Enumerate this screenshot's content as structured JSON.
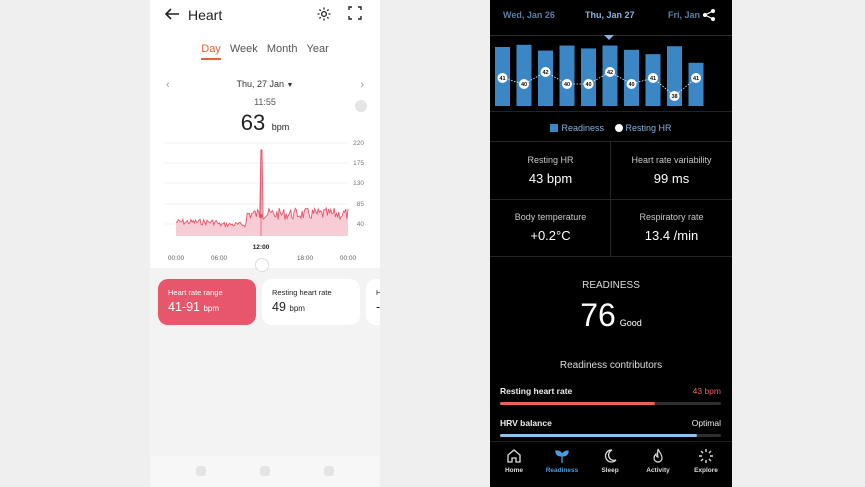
{
  "left": {
    "title": "Heart",
    "tabs": [
      "Day",
      "Week",
      "Month",
      "Year"
    ],
    "active_tab": "Day",
    "date": "Thu, 27 Jan",
    "time": "11:55",
    "bpm_value": "63",
    "bpm_unit": "bpm",
    "accent": "#e8566c",
    "chart": {
      "y_ticks": [
        "220",
        "175",
        "130",
        "85",
        "40"
      ],
      "x_ticks": [
        "00:00",
        "06:00",
        "12:00",
        "18:00",
        "00:00"
      ],
      "highlight_label": "12:00"
    },
    "cards": [
      {
        "caption": "Heart rate range",
        "value": "41-91",
        "unit": "bpm"
      },
      {
        "caption": "Resting heart rate",
        "value": "49",
        "unit": "bpm"
      },
      {
        "caption": "H",
        "value": "-"
      }
    ]
  },
  "right": {
    "dates": {
      "prev": "Wed, Jan 26",
      "current": "Thu, Jan 27",
      "next": "Fri, Jan"
    },
    "chart_data": {
      "type": "bar",
      "title": "Readiness",
      "series": [
        {
          "name": "Readiness",
          "values": [
            82,
            85,
            77,
            84,
            80,
            84,
            78,
            72,
            83,
            60
          ]
        },
        {
          "name": "Resting HR",
          "values": [
            41,
            40,
            42,
            40,
            40,
            42,
            40,
            41,
            38,
            41
          ]
        }
      ],
      "legend": [
        "Readiness",
        "Resting HR"
      ]
    },
    "metrics": [
      {
        "label": "Resting HR",
        "value": "43 bpm"
      },
      {
        "label": "Heart rate variability",
        "value": "99 ms"
      },
      {
        "label": "Body temperature",
        "value": "+0.2°C"
      },
      {
        "label": "Respiratory rate",
        "value": "13.4 /min"
      }
    ],
    "readiness_title": "READINESS",
    "readiness_score": "76",
    "readiness_word": "Good",
    "contributors_title": "Readiness contributors",
    "contributors": [
      {
        "name": "Resting heart rate",
        "value": "43 bpm",
        "color": "#e8645a",
        "progress": 0.7
      },
      {
        "name": "HRV balance",
        "value": "Optimal",
        "color": "#8cc4ee",
        "progress": 0.89
      }
    ],
    "nav": [
      {
        "label": "Home",
        "icon": "home-icon"
      },
      {
        "label": "Readiness",
        "icon": "readiness-icon",
        "active": true
      },
      {
        "label": "Sleep",
        "icon": "moon-icon"
      },
      {
        "label": "Activity",
        "icon": "flame-icon"
      },
      {
        "label": "Explore",
        "icon": "explore-icon"
      }
    ]
  }
}
